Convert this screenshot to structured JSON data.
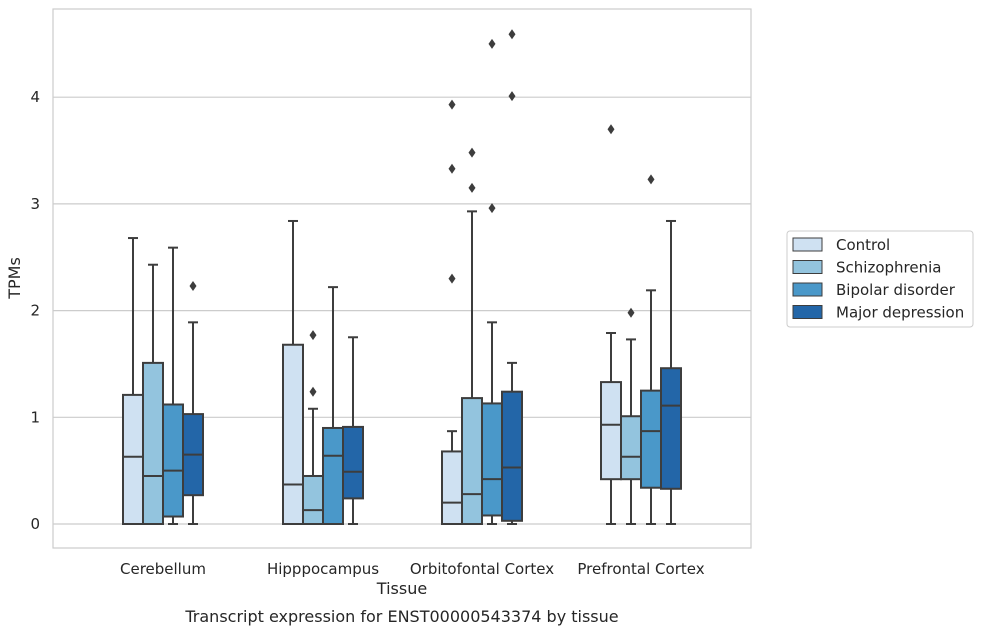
{
  "chart_data": {
    "type": "box",
    "caption": "Transcript expression for ENST00000543374 by tissue",
    "xlabel": "Tissue",
    "ylabel": "TPMs",
    "ylim": [
      -0.22,
      4.8
    ],
    "yticks": [
      0,
      1,
      2,
      3,
      4
    ],
    "grid": "horizontal",
    "legend_position": "right",
    "categories": [
      "Cerebellum",
      "Hipppocampus",
      "Orbitofontal Cortex",
      "Prefrontal Cortex"
    ],
    "series": [
      {
        "name": "Control",
        "color": "#cfe1f2",
        "boxes": [
          {
            "min": 0,
            "q1": 0,
            "median": 0.63,
            "q3": 1.21,
            "max": 2.68,
            "outliers": []
          },
          {
            "min": 0,
            "q1": 0,
            "median": 0.37,
            "q3": 1.68,
            "max": 2.84,
            "outliers": []
          },
          {
            "min": 0,
            "q1": 0,
            "median": 0.2,
            "q3": 0.68,
            "max": 0.87,
            "outliers": [
              2.3,
              3.33,
              3.93
            ]
          },
          {
            "min": 0,
            "q1": 0.42,
            "median": 0.93,
            "q3": 1.33,
            "max": 1.79,
            "outliers": [
              3.7
            ]
          }
        ]
      },
      {
        "name": "Schizophrenia",
        "color": "#93c4de",
        "boxes": [
          {
            "min": 0,
            "q1": 0,
            "median": 0.45,
            "q3": 1.51,
            "max": 2.43,
            "outliers": []
          },
          {
            "min": 0,
            "q1": 0,
            "median": 0.13,
            "q3": 0.45,
            "max": 1.08,
            "outliers": [
              1.24,
              1.77
            ]
          },
          {
            "min": 0,
            "q1": 0,
            "median": 0.28,
            "q3": 1.18,
            "max": 2.93,
            "outliers": [
              3.15,
              3.48
            ]
          },
          {
            "min": 0,
            "q1": 0.42,
            "median": 0.63,
            "q3": 1.01,
            "max": 1.73,
            "outliers": [
              1.98
            ]
          }
        ]
      },
      {
        "name": "Bipolar disorder",
        "color": "#4a98c9",
        "boxes": [
          {
            "min": 0,
            "q1": 0.07,
            "median": 0.5,
            "q3": 1.12,
            "max": 2.59,
            "outliers": []
          },
          {
            "min": 0,
            "q1": 0,
            "median": 0.64,
            "q3": 0.9,
            "max": 2.22,
            "outliers": []
          },
          {
            "min": 0,
            "q1": 0.08,
            "median": 0.42,
            "q3": 1.13,
            "max": 1.89,
            "outliers": [
              2.96,
              4.5
            ]
          },
          {
            "min": 0,
            "q1": 0.34,
            "median": 0.87,
            "q3": 1.25,
            "max": 2.19,
            "outliers": [
              3.23
            ]
          }
        ]
      },
      {
        "name": "Major depression",
        "color": "#2366a8",
        "boxes": [
          {
            "min": 0,
            "q1": 0.27,
            "median": 0.65,
            "q3": 1.03,
            "max": 1.89,
            "outliers": [
              2.23
            ]
          },
          {
            "min": 0,
            "q1": 0.24,
            "median": 0.49,
            "q3": 0.91,
            "max": 1.75,
            "outliers": []
          },
          {
            "min": 0,
            "q1": 0.03,
            "median": 0.53,
            "q3": 1.24,
            "max": 1.51,
            "outliers": [
              4.01,
              4.59
            ]
          },
          {
            "min": 0,
            "q1": 0.33,
            "median": 1.11,
            "q3": 1.46,
            "max": 2.84,
            "outliers": []
          }
        ]
      }
    ]
  }
}
